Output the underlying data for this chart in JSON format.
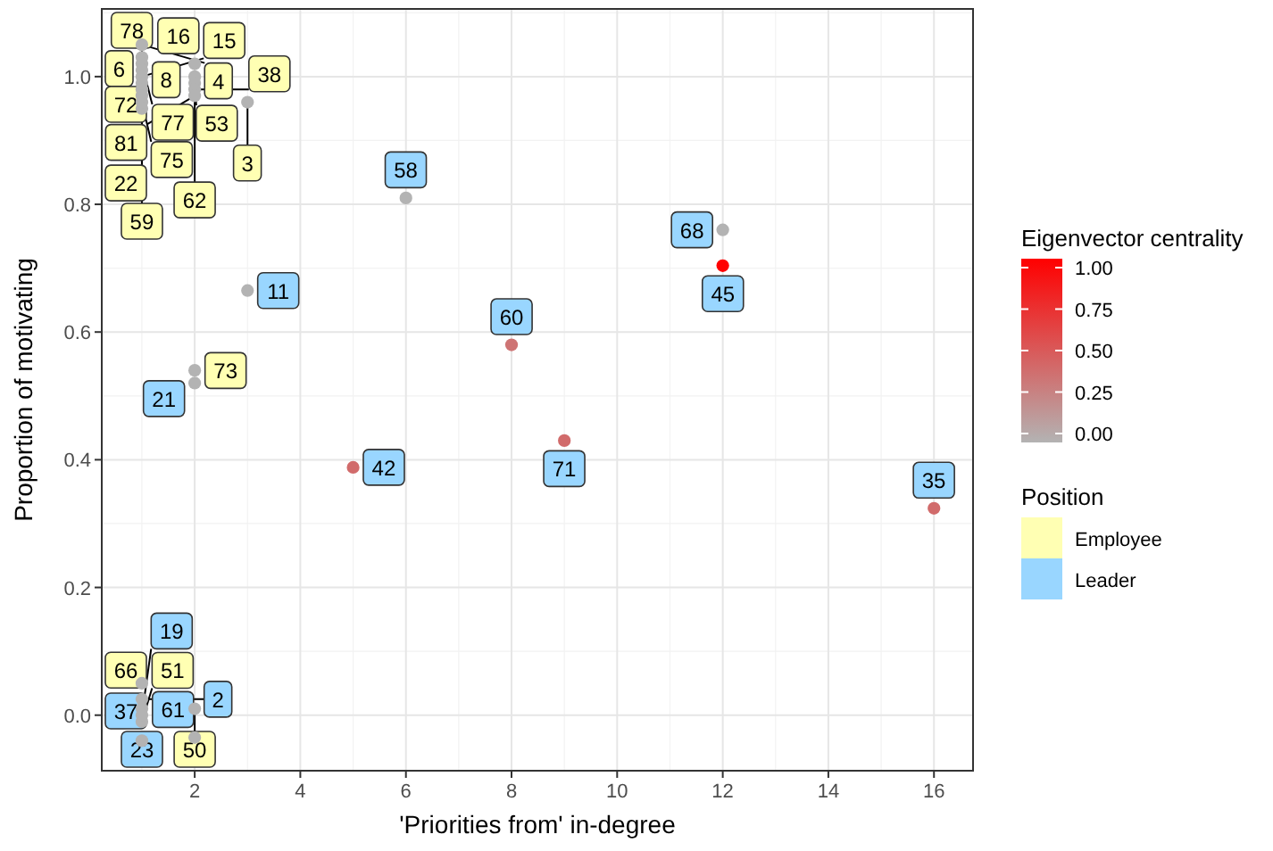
{
  "chart_data": {
    "type": "scatter",
    "xlabel": "'Priorities from' in-degree",
    "ylabel": "Proportion of motivating",
    "clabel": "Eigenvector centrality",
    "legend_title": "Position",
    "legend": "right",
    "grid": true,
    "marker": "circle",
    "xlim": [
      0.24,
      16.74
    ],
    "ylim": [
      -0.087,
      1.106
    ],
    "xticks": [
      2,
      4,
      6,
      8,
      10,
      12,
      14,
      16
    ],
    "yticks": [
      {
        "value": 0,
        "label": "0.0"
      },
      {
        "value": 0.2,
        "label": "0.2"
      },
      {
        "value": 0.4,
        "label": "0.4"
      },
      {
        "value": 0.6,
        "label": "0.6"
      },
      {
        "value": 0.8,
        "label": "0.8"
      },
      {
        "value": 1,
        "label": "1.0"
      }
    ],
    "clim": [
      0,
      1
    ],
    "cticks": [
      {
        "value": 0,
        "label": "0.00"
      },
      {
        "value": 0.25,
        "label": "0.25"
      },
      {
        "value": 0.5,
        "label": "0.50"
      },
      {
        "value": 0.75,
        "label": "0.75"
      },
      {
        "value": 1,
        "label": "1.00"
      }
    ],
    "series": [
      {
        "name": "Employee",
        "color": "#b3b3b3",
        "x": [
          1,
          1,
          2,
          1,
          1,
          1,
          2,
          1,
          2,
          3,
          2,
          1,
          2,
          1,
          1,
          1,
          2,
          1,
          1,
          2
        ],
        "values": [
          1.05,
          1.03,
          1.02,
          1.02,
          1.01,
          1.0,
          1.0,
          0.95,
          0.99,
          0.96,
          0.98,
          0.99,
          0.97,
          0.96,
          0.98,
          0.97,
          0.54,
          0.05,
          -0.01,
          0.01
        ]
      },
      {
        "name": "Leader",
        "x": [
          6,
          3,
          2,
          8,
          12,
          12,
          5,
          9,
          16,
          1,
          1,
          1,
          1,
          2
        ],
        "values": [
          0.81,
          0.665,
          0.52,
          0.58,
          0.704,
          0.76,
          0.388,
          0.43,
          0.324,
          0.025,
          0.01,
          0.0,
          -0.04,
          -0.035
        ],
        "colors": [
          "#b3b3b3",
          "#b3b3b3",
          "#b3b3b3",
          "#ce7474",
          "#ff0000",
          "#b3b3b3",
          "#d16b6b",
          "#d16b6b",
          "#d16b6b",
          "#b3b3b3",
          "#b3b3b3",
          "#b3b3b3",
          "#b3b3b3",
          "#b3b3b3"
        ]
      }
    ],
    "annotations": [
      {
        "text": "4",
        "x": 1,
        "y": 1.05
      },
      {
        "text": "6",
        "x": 1,
        "y": 1.03
      },
      {
        "text": "16",
        "x": 2,
        "y": 1.02
      },
      {
        "text": "77",
        "x": 1,
        "y": 1.02
      },
      {
        "text": "72",
        "x": 1,
        "y": 1.01
      },
      {
        "text": "15",
        "x": 1,
        "y": 1.0
      },
      {
        "text": "62",
        "x": 2,
        "y": 1.0
      },
      {
        "text": "78",
        "x": 1,
        "y": 0.95
      },
      {
        "text": "53",
        "x": 2,
        "y": 0.99
      },
      {
        "text": "3",
        "x": 3,
        "y": 0.96
      },
      {
        "text": "38",
        "x": 2,
        "y": 0.98
      },
      {
        "text": "59",
        "x": 1,
        "y": 0.99
      },
      {
        "text": "81",
        "x": 2,
        "y": 0.97
      },
      {
        "text": "75",
        "x": 1,
        "y": 0.96
      },
      {
        "text": "22",
        "x": 1,
        "y": 0.98
      },
      {
        "text": "8",
        "x": 1,
        "y": 0.97
      },
      {
        "text": "73",
        "x": 2,
        "y": 0.54
      },
      {
        "text": "66",
        "x": 1,
        "y": 0.05
      },
      {
        "text": "51",
        "x": 1,
        "y": -0.01
      },
      {
        "text": "50",
        "x": 2,
        "y": 0.01
      },
      {
        "text": "58",
        "x": 6,
        "y": 0.81
      },
      {
        "text": "11",
        "x": 3,
        "y": 0.665
      },
      {
        "text": "21",
        "x": 2,
        "y": 0.52
      },
      {
        "text": "60",
        "x": 8,
        "y": 0.58
      },
      {
        "text": "45",
        "x": 12,
        "y": 0.704
      },
      {
        "text": "68",
        "x": 12,
        "y": 0.76
      },
      {
        "text": "42",
        "x": 5,
        "y": 0.388
      },
      {
        "text": "71",
        "x": 9,
        "y": 0.43
      },
      {
        "text": "35",
        "x": 16,
        "y": 0.324
      },
      {
        "text": "2",
        "x": 1,
        "y": 0.025
      },
      {
        "text": "37",
        "x": 1,
        "y": 0.01
      },
      {
        "text": "19",
        "x": 1,
        "y": 0.0
      },
      {
        "text": "23",
        "x": 1,
        "y": -0.04
      },
      {
        "text": "61",
        "x": 2,
        "y": -0.035
      }
    ]
  }
}
